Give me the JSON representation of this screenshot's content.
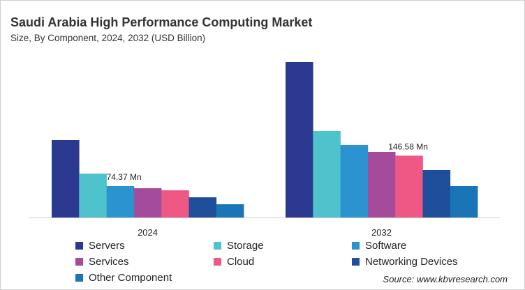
{
  "chart_data": {
    "type": "bar",
    "title": "Saudi Arabia High Performance Computing Market",
    "subtitle": "Size, By Component, 2024, 2032 (USD Billion)",
    "categories": [
      "2024",
      "2032"
    ],
    "series": [
      {
        "name": "Servers",
        "color": "#2b3990",
        "values": [
          183.5,
          368.6
        ]
      },
      {
        "name": "Storage",
        "color": "#4fc3cc",
        "values": [
          104.1,
          205.0
        ]
      },
      {
        "name": "Software",
        "color": "#2a93d0",
        "values": [
          74.37,
          171.9
        ]
      },
      {
        "name": "Services",
        "color": "#a54b9b",
        "values": [
          69.4,
          155.4
        ]
      },
      {
        "name": "Cloud",
        "color": "#ef5785",
        "values": [
          64.5,
          146.58
        ]
      },
      {
        "name": "Networking Devices",
        "color": "#1f4e9a",
        "values": [
          47.9,
          112.4
        ]
      },
      {
        "name": "Other Component",
        "color": "#1a74b8",
        "values": [
          31.4,
          74.4
        ]
      }
    ],
    "data_labels": [
      {
        "category": "2024",
        "series": "Software",
        "text": "74.37 Mn"
      },
      {
        "category": "2032",
        "series": "Cloud",
        "text": "146.58 Mn"
      }
    ],
    "ylim": [
      0,
      380
    ],
    "grid": false,
    "legend": "bottom"
  },
  "source": "Source: www.kbvresearch.com"
}
